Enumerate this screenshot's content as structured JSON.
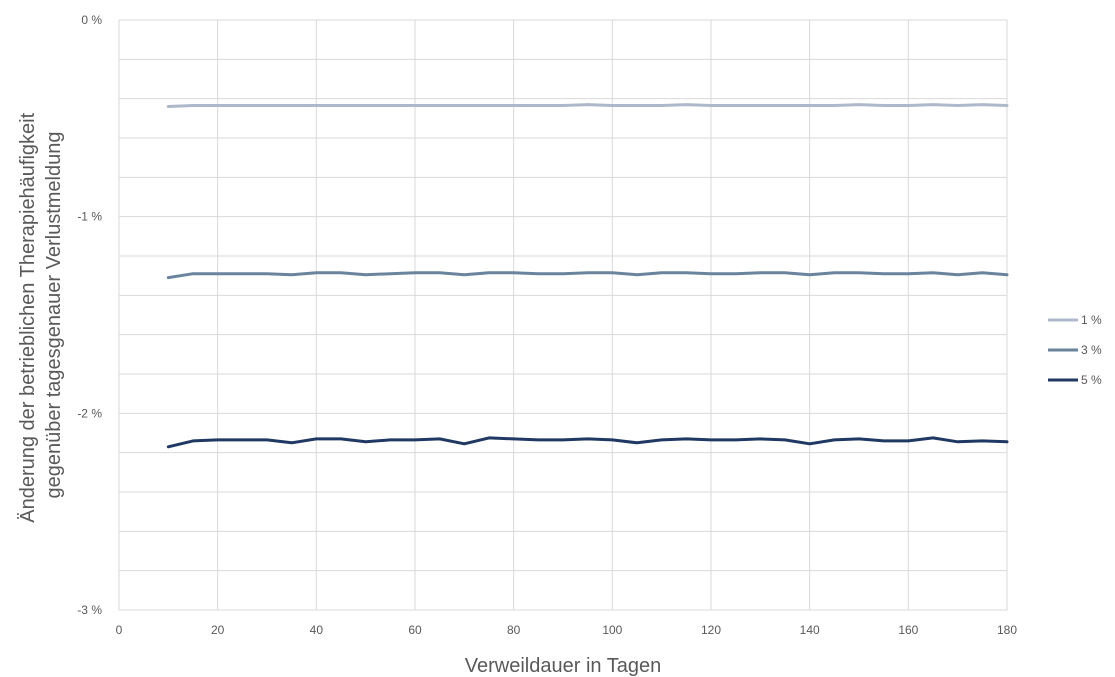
{
  "chart_data": {
    "type": "line",
    "title": "",
    "xlabel": "Verweildauer in Tagen",
    "ylabel_lines": [
      "Änderung der betrieblichen Therapiehäufigkeit",
      "gegenüber tagesgenauer Verlustmeldung"
    ],
    "xlim": [
      0,
      180
    ],
    "ylim": [
      -3,
      0
    ],
    "x_ticks": [
      0,
      20,
      40,
      60,
      80,
      100,
      120,
      140,
      160,
      180
    ],
    "x_tick_labels": [
      "0",
      "20",
      "40",
      "60",
      "80",
      "100",
      "120",
      "140",
      "160",
      "180"
    ],
    "y_ticks": [
      0,
      -1,
      -2,
      -3
    ],
    "y_tick_labels": [
      "0 %",
      "-1 %",
      "-2 %",
      "-3 %"
    ],
    "y_minor_step": 0.2,
    "x_grid_step": 20,
    "grid": true,
    "legend_position": "right",
    "x": [
      10,
      15,
      20,
      25,
      30,
      35,
      40,
      45,
      50,
      55,
      60,
      65,
      70,
      75,
      80,
      85,
      90,
      95,
      100,
      105,
      110,
      115,
      120,
      125,
      130,
      135,
      140,
      145,
      150,
      155,
      160,
      165,
      170,
      175,
      180
    ],
    "series": [
      {
        "name": "1 %",
        "color": "#adb9ca",
        "values": [
          -0.44,
          -0.435,
          -0.435,
          -0.435,
          -0.435,
          -0.435,
          -0.435,
          -0.435,
          -0.435,
          -0.435,
          -0.435,
          -0.435,
          -0.435,
          -0.435,
          -0.435,
          -0.435,
          -0.435,
          -0.43,
          -0.435,
          -0.435,
          -0.435,
          -0.43,
          -0.435,
          -0.435,
          -0.435,
          -0.435,
          -0.435,
          -0.435,
          -0.43,
          -0.435,
          -0.435,
          -0.43,
          -0.435,
          -0.43,
          -0.435
        ]
      },
      {
        "name": "3 %",
        "color": "#6a849e",
        "values": [
          -1.31,
          -1.29,
          -1.29,
          -1.29,
          -1.29,
          -1.295,
          -1.285,
          -1.285,
          -1.295,
          -1.29,
          -1.285,
          -1.285,
          -1.295,
          -1.285,
          -1.285,
          -1.29,
          -1.29,
          -1.285,
          -1.285,
          -1.295,
          -1.285,
          -1.285,
          -1.29,
          -1.29,
          -1.285,
          -1.285,
          -1.295,
          -1.285,
          -1.285,
          -1.29,
          -1.29,
          -1.285,
          -1.295,
          -1.285,
          -1.295
        ]
      },
      {
        "name": "5 %",
        "color": "#1f3864",
        "values": [
          -2.17,
          -2.14,
          -2.135,
          -2.135,
          -2.135,
          -2.15,
          -2.13,
          -2.13,
          -2.145,
          -2.135,
          -2.135,
          -2.13,
          -2.155,
          -2.125,
          -2.13,
          -2.135,
          -2.135,
          -2.13,
          -2.135,
          -2.15,
          -2.135,
          -2.13,
          -2.135,
          -2.135,
          -2.13,
          -2.135,
          -2.155,
          -2.135,
          -2.13,
          -2.14,
          -2.14,
          -2.125,
          -2.145,
          -2.14,
          -2.145
        ]
      }
    ]
  }
}
